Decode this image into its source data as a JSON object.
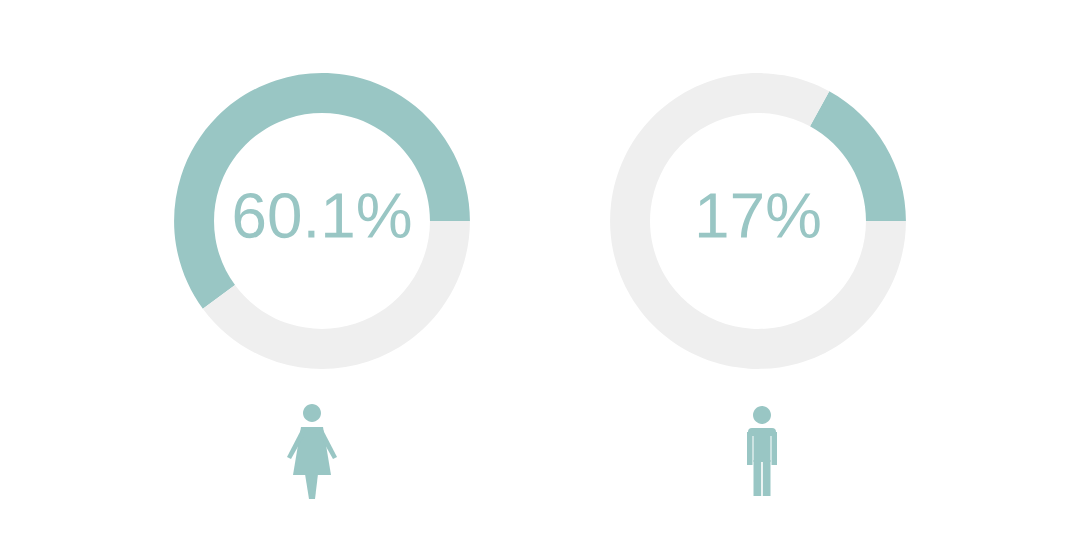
{
  "chart_data": [
    {
      "type": "donut",
      "categories": [
        null,
        null
      ],
      "values": [
        60.1,
        39.9
      ],
      "colors": [
        "#99c6c4",
        "#efefef"
      ],
      "value_labels": [
        "60.1%",
        null
      ]
    },
    {
      "type": "donut",
      "categories": [
        null,
        null
      ],
      "values": [
        17,
        83
      ],
      "colors": [
        "#99c6c4",
        "#efefef"
      ],
      "value_labels": [
        "17%",
        null
      ]
    }
  ]
}
